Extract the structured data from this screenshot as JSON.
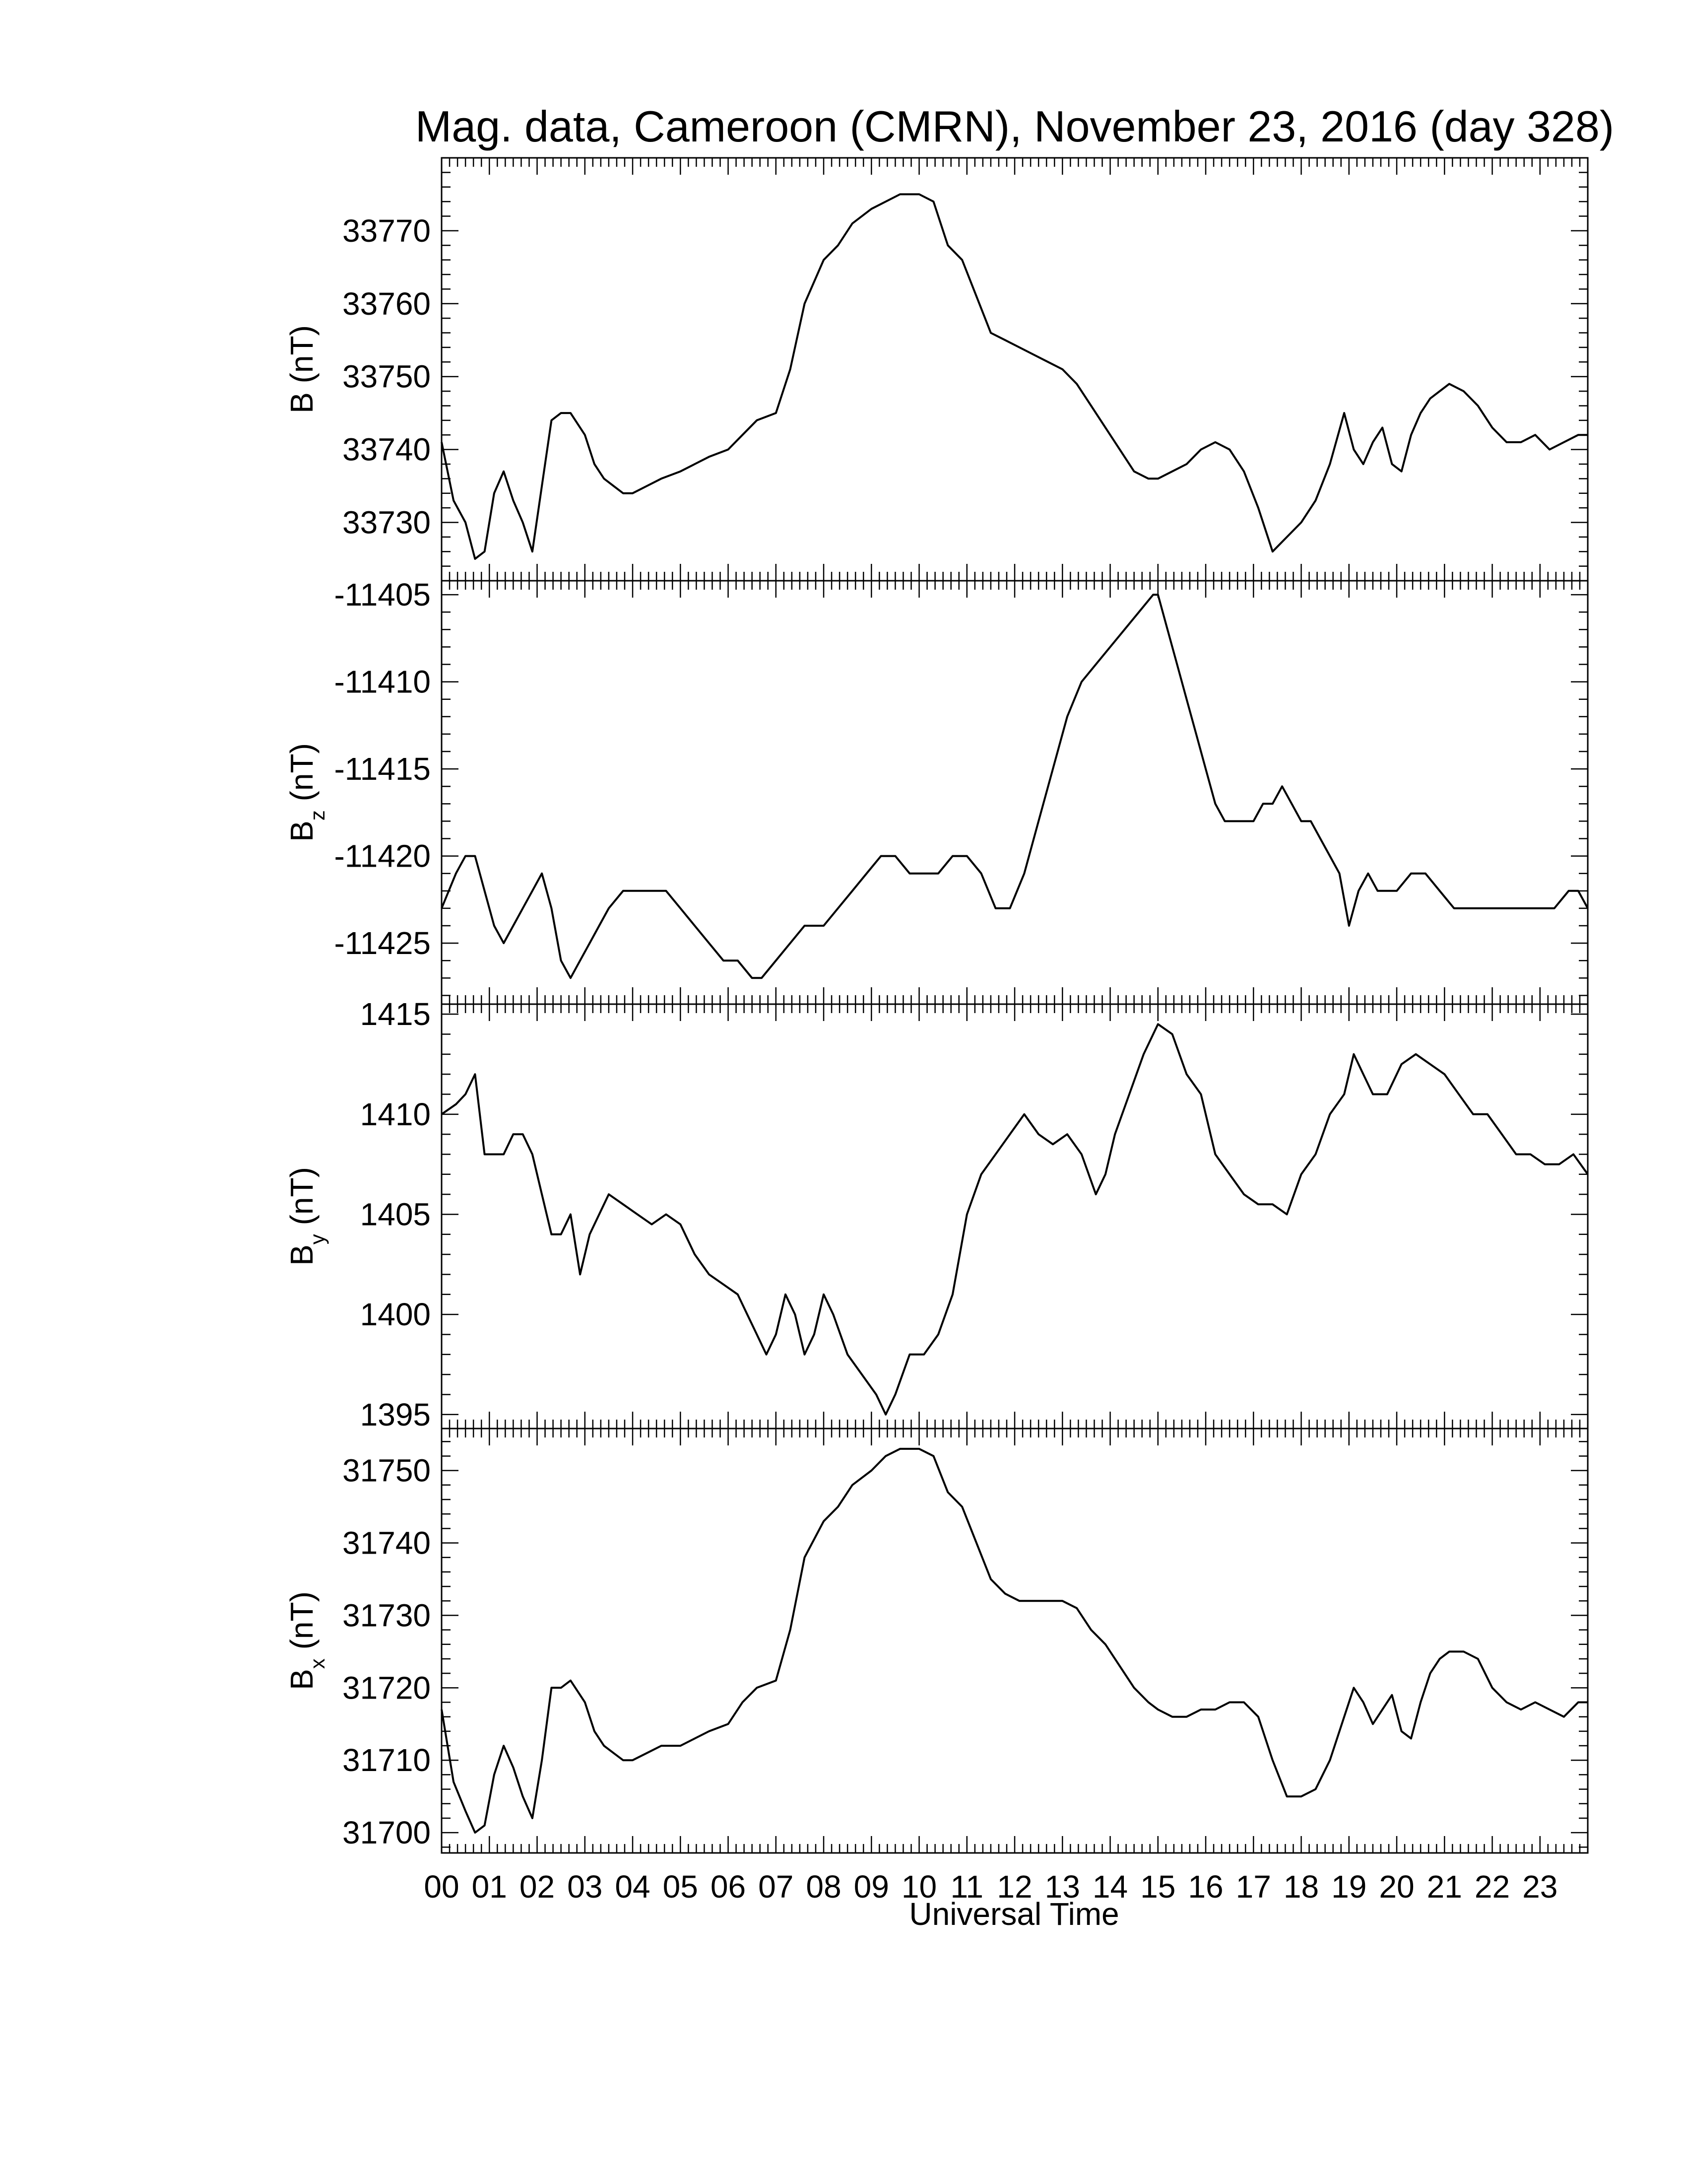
{
  "title": "Mag. data, Cameroon (CMRN), November 23, 2016 (day 328)",
  "xlabel": "Universal Time",
  "x_ticks": [
    "00",
    "01",
    "02",
    "03",
    "04",
    "05",
    "06",
    "07",
    "08",
    "09",
    "10",
    "11",
    "12",
    "13",
    "14",
    "15",
    "16",
    "17",
    "18",
    "19",
    "20",
    "21",
    "22",
    "23"
  ],
  "chart_data": [
    {
      "type": "line",
      "ylabel": {
        "main": "B",
        "sub": "",
        "unit": " (nT)"
      },
      "xlim": [
        0,
        24
      ],
      "ylim": [
        33722,
        33780
      ],
      "yticks": [
        33730,
        33740,
        33750,
        33760,
        33770
      ],
      "x": [
        0,
        0.25,
        0.5,
        0.7,
        0.9,
        1.1,
        1.3,
        1.5,
        1.7,
        1.9,
        2.1,
        2.3,
        2.5,
        2.7,
        3.0,
        3.2,
        3.4,
        3.6,
        3.8,
        4.0,
        4.3,
        4.6,
        5.0,
        5.3,
        5.6,
        6.0,
        6.3,
        6.6,
        7.0,
        7.3,
        7.6,
        8.0,
        8.3,
        8.6,
        9.0,
        9.3,
        9.6,
        10.0,
        10.3,
        10.6,
        10.9,
        11.2,
        11.5,
        11.8,
        12.1,
        12.4,
        12.7,
        13.0,
        13.3,
        13.6,
        13.9,
        14.2,
        14.5,
        14.8,
        15.0,
        15.3,
        15.6,
        15.9,
        16.2,
        16.5,
        16.8,
        17.1,
        17.4,
        17.7,
        18.0,
        18.3,
        18.6,
        18.9,
        19.1,
        19.3,
        19.5,
        19.7,
        19.9,
        20.1,
        20.3,
        20.5,
        20.7,
        20.9,
        21.1,
        21.4,
        21.7,
        22.0,
        22.3,
        22.6,
        22.9,
        23.2,
        23.5,
        23.8,
        24.0
      ],
      "values": [
        33741,
        33733,
        33730,
        33725,
        33726,
        33734,
        33737,
        33733,
        33730,
        33726,
        33735,
        33744,
        33745,
        33745,
        33742,
        33738,
        33736,
        33735,
        33734,
        33734,
        33735,
        33736,
        33737,
        33738,
        33739,
        33740,
        33742,
        33744,
        33745,
        33751,
        33760,
        33766,
        33768,
        33771,
        33773,
        33774,
        33775,
        33775,
        33774,
        33768,
        33766,
        33761,
        33756,
        33755,
        33754,
        33753,
        33752,
        33751,
        33749,
        33746,
        33743,
        33740,
        33737,
        33736,
        33736,
        33737,
        33738,
        33740,
        33741,
        33740,
        33737,
        33732,
        33726,
        33728,
        33730,
        33733,
        33738,
        33745,
        33740,
        33738,
        33741,
        33743,
        33738,
        33737,
        33742,
        33745,
        33747,
        33748,
        33749,
        33748,
        33746,
        33743,
        33741,
        33741,
        33742,
        33740,
        33741,
        33742,
        33742
      ]
    },
    {
      "type": "line",
      "ylabel": {
        "main": "B",
        "sub": "z",
        "unit": " (nT)"
      },
      "xlim": [
        0,
        24
      ],
      "ylim": [
        -11428.5,
        -11404.2
      ],
      "yticks": [
        -11425,
        -11420,
        -11415,
        -11410,
        -11405
      ],
      "x": [
        0,
        0.3,
        0.5,
        0.7,
        0.9,
        1.1,
        1.3,
        1.5,
        1.7,
        1.9,
        2.1,
        2.3,
        2.5,
        2.7,
        2.9,
        3.1,
        3.3,
        3.5,
        3.8,
        4.1,
        4.4,
        4.7,
        5.0,
        5.3,
        5.6,
        5.9,
        6.2,
        6.5,
        6.7,
        7.0,
        7.3,
        7.6,
        8.0,
        8.3,
        8.6,
        8.9,
        9.2,
        9.5,
        9.8,
        10.1,
        10.4,
        10.7,
        11.0,
        11.3,
        11.6,
        11.9,
        12.2,
        12.5,
        12.8,
        13.1,
        13.4,
        13.7,
        14.0,
        14.3,
        14.6,
        14.9,
        15.0,
        15.2,
        15.4,
        15.6,
        15.8,
        16.0,
        16.2,
        16.4,
        16.6,
        16.8,
        17.0,
        17.2,
        17.4,
        17.6,
        17.8,
        18.0,
        18.2,
        18.4,
        18.6,
        18.8,
        19.0,
        19.2,
        19.4,
        19.6,
        19.8,
        20.0,
        20.3,
        20.6,
        20.9,
        21.2,
        21.5,
        21.8,
        22.1,
        22.4,
        22.7,
        23.0,
        23.3,
        23.6,
        23.8,
        24.0
      ],
      "values": [
        -11423,
        -11421,
        -11420,
        -11420,
        -11422,
        -11424,
        -11425,
        -11424,
        -11423,
        -11422,
        -11421,
        -11423,
        -11426,
        -11427,
        -11426,
        -11425,
        -11424,
        -11423,
        -11422,
        -11422,
        -11422,
        -11422,
        -11423,
        -11424,
        -11425,
        -11426,
        -11426,
        -11427,
        -11427,
        -11426,
        -11425,
        -11424,
        -11424,
        -11423,
        -11422,
        -11421,
        -11420,
        -11420,
        -11421,
        -11421,
        -11421,
        -11420,
        -11420,
        -11421,
        -11423,
        -11423,
        -11421,
        -11418,
        -11415,
        -11412,
        -11410,
        -11409,
        -11408,
        -11407,
        -11406,
        -11405,
        -11405,
        -11407,
        -11409,
        -11411,
        -11413,
        -11415,
        -11417,
        -11418,
        -11418,
        -11418,
        -11418,
        -11417,
        -11417,
        -11416,
        -11417,
        -11418,
        -11418,
        -11419,
        -11420,
        -11421,
        -11424,
        -11422,
        -11421,
        -11422,
        -11422,
        -11422,
        -11421,
        -11421,
        -11422,
        -11423,
        -11423,
        -11423,
        -11423,
        -11423,
        -11423,
        -11423,
        -11423,
        -11422,
        -11422,
        -11423
      ]
    },
    {
      "type": "line",
      "ylabel": {
        "main": "B",
        "sub": "y",
        "unit": " (nT)"
      },
      "xlim": [
        0,
        24
      ],
      "ylim": [
        1394.3,
        1415.5
      ],
      "yticks": [
        1395,
        1400,
        1405,
        1410,
        1415
      ],
      "x": [
        0,
        0.3,
        0.5,
        0.7,
        0.9,
        1.1,
        1.3,
        1.5,
        1.7,
        1.9,
        2.1,
        2.3,
        2.5,
        2.7,
        2.9,
        3.1,
        3.3,
        3.5,
        3.8,
        4.1,
        4.4,
        4.7,
        5.0,
        5.3,
        5.6,
        5.9,
        6.2,
        6.4,
        6.6,
        6.8,
        7.0,
        7.2,
        7.4,
        7.6,
        7.8,
        8.0,
        8.2,
        8.5,
        8.8,
        9.1,
        9.3,
        9.5,
        9.8,
        10.1,
        10.4,
        10.7,
        11.0,
        11.3,
        11.6,
        11.9,
        12.2,
        12.5,
        12.8,
        13.1,
        13.4,
        13.7,
        13.9,
        14.1,
        14.4,
        14.7,
        15.0,
        15.3,
        15.6,
        15.9,
        16.2,
        16.5,
        16.8,
        17.1,
        17.4,
        17.7,
        18.0,
        18.3,
        18.6,
        18.9,
        19.1,
        19.3,
        19.5,
        19.8,
        20.1,
        20.4,
        20.7,
        21.0,
        21.3,
        21.6,
        21.9,
        22.2,
        22.5,
        22.8,
        23.1,
        23.4,
        23.7,
        24.0
      ],
      "values": [
        1410,
        1410.5,
        1411,
        1412,
        1408,
        1408,
        1408,
        1409,
        1409,
        1408,
        1406,
        1404,
        1404,
        1405,
        1402,
        1404,
        1405,
        1406,
        1405.5,
        1405,
        1404.5,
        1405,
        1404.5,
        1403,
        1402,
        1401.5,
        1401,
        1400,
        1399,
        1398,
        1399,
        1401,
        1400,
        1398,
        1399,
        1401,
        1400,
        1398,
        1397,
        1396,
        1395,
        1396,
        1398,
        1398,
        1399,
        1401,
        1405,
        1407,
        1408,
        1409,
        1410,
        1409,
        1408.5,
        1409,
        1408,
        1406,
        1407,
        1409,
        1411,
        1413,
        1414.5,
        1414,
        1412,
        1411,
        1408,
        1407,
        1406,
        1405.5,
        1405.5,
        1405,
        1407,
        1408,
        1410,
        1411,
        1413,
        1412,
        1411,
        1411,
        1412.5,
        1413,
        1412.5,
        1412,
        1411,
        1410,
        1410,
        1409,
        1408,
        1408,
        1407.5,
        1407.5,
        1408,
        1407
      ]
    },
    {
      "type": "line",
      "ylabel": {
        "main": "B",
        "sub": "x",
        "unit": " (nT)"
      },
      "xlim": [
        0,
        24
      ],
      "ylim": [
        31697.2,
        31755.8
      ],
      "yticks": [
        31700,
        31710,
        31720,
        31730,
        31740,
        31750
      ],
      "x": [
        0,
        0.25,
        0.5,
        0.7,
        0.9,
        1.1,
        1.3,
        1.5,
        1.7,
        1.9,
        2.1,
        2.3,
        2.5,
        2.7,
        3.0,
        3.2,
        3.4,
        3.6,
        3.8,
        4.0,
        4.3,
        4.6,
        5.0,
        5.3,
        5.6,
        6.0,
        6.3,
        6.6,
        7.0,
        7.3,
        7.6,
        8.0,
        8.3,
        8.6,
        9.0,
        9.3,
        9.6,
        10.0,
        10.3,
        10.6,
        10.9,
        11.2,
        11.5,
        11.8,
        12.1,
        12.4,
        12.7,
        13.0,
        13.3,
        13.6,
        13.9,
        14.2,
        14.5,
        14.8,
        15.0,
        15.3,
        15.6,
        15.9,
        16.2,
        16.5,
        16.8,
        17.1,
        17.4,
        17.7,
        18.0,
        18.3,
        18.6,
        18.9,
        19.1,
        19.3,
        19.5,
        19.7,
        19.9,
        20.1,
        20.3,
        20.5,
        20.7,
        20.9,
        21.1,
        21.4,
        21.7,
        22.0,
        22.3,
        22.6,
        22.9,
        23.2,
        23.5,
        23.8,
        24.0
      ],
      "values": [
        31717,
        31707,
        31703,
        31700,
        31701,
        31708,
        31712,
        31709,
        31705,
        31702,
        31710,
        31720,
        31720,
        31721,
        31718,
        31714,
        31712,
        31711,
        31710,
        31710,
        31711,
        31712,
        31712,
        31713,
        31714,
        31715,
        31718,
        31720,
        31721,
        31728,
        31738,
        31743,
        31745,
        31748,
        31750,
        31752,
        31753,
        31753,
        31752,
        31747,
        31745,
        31740,
        31735,
        31733,
        31732,
        31732,
        31732,
        31732,
        31731,
        31728,
        31726,
        31723,
        31720,
        31718,
        31717,
        31716,
        31716,
        31717,
        31717,
        31718,
        31718,
        31716,
        31710,
        31705,
        31705,
        31706,
        31710,
        31716,
        31720,
        31718,
        31715,
        31717,
        31719,
        31714,
        31713,
        31718,
        31722,
        31724,
        31725,
        31725,
        31724,
        31720,
        31718,
        31717,
        31718,
        31717,
        31716,
        31718,
        31718
      ]
    }
  ]
}
